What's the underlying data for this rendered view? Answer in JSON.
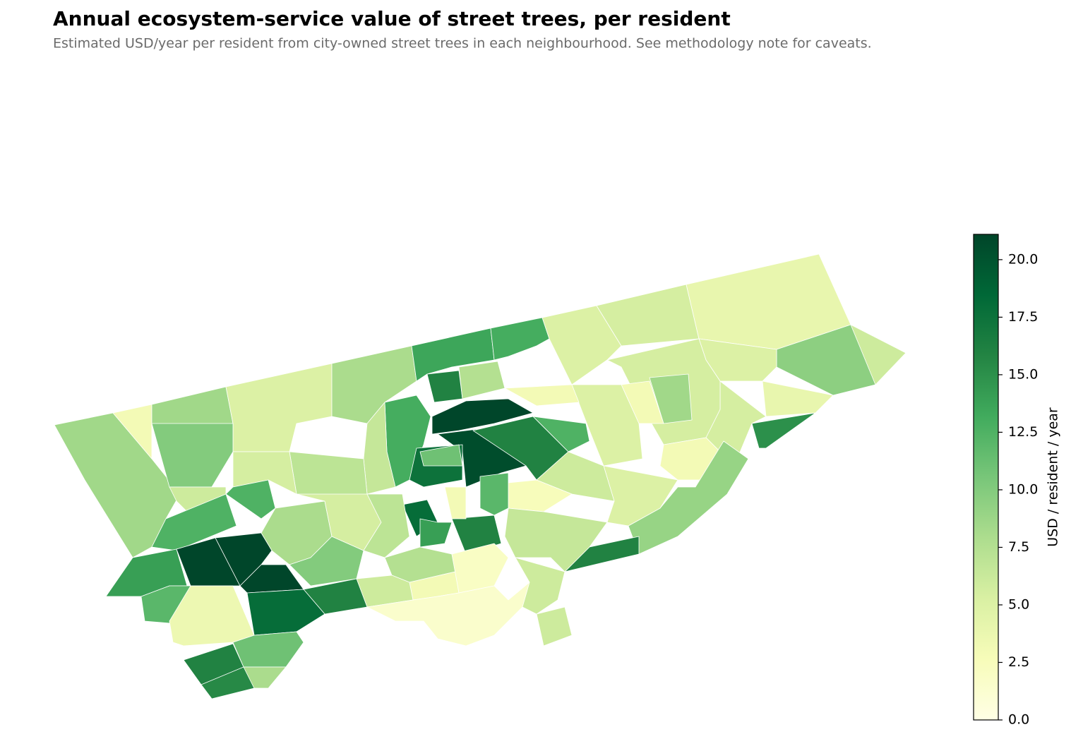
{
  "chart_data": {
    "type": "choropleth",
    "title": "Annual ecosystem-service value of street trees, per resident",
    "subtitle": "Estimated USD/year per resident from city-owned street trees in each neighbourhood. See methodology note for caveats.",
    "cmap_colors": [
      "#ffffe5",
      "#f7fcb9",
      "#d9f0a3",
      "#addd8e",
      "#78c679",
      "#41ab5d",
      "#238443",
      "#006837",
      "#004529"
    ],
    "values": [
      8.5,
      3,
      8.5,
      5,
      8,
      13.5,
      13,
      5,
      5.5,
      4,
      6,
      9.5,
      5,
      4,
      15,
      5.5,
      5.5,
      8.5,
      3,
      5,
      3,
      9,
      16,
      5,
      16,
      7.5,
      3,
      21,
      20.5,
      16,
      12.5,
      6,
      2.5,
      12,
      16,
      6.5,
      6,
      13,
      17.5,
      11,
      3,
      18,
      14,
      6.5,
      7,
      5.5,
      12.5,
      10,
      6,
      12.5,
      14,
      21,
      21,
      21,
      8,
      10,
      5.5,
      7,
      7.5,
      3,
      2,
      6,
      16,
      18,
      12,
      3.5,
      11,
      8,
      16,
      15.5,
      1.5,
      6
    ],
    "colorbar": {
      "label": "USD / resident / year",
      "lim": [
        0,
        21.1
      ],
      "ticks": [
        {
          "value": 0,
          "label": "0.0"
        },
        2.5,
        {
          "value": 5,
          "label": "5.0"
        },
        7.5,
        {
          "value": 10,
          "label": "10.0"
        },
        12.5,
        {
          "value": 15,
          "label": "15.0"
        },
        17.5,
        {
          "value": 20,
          "label": "20.0"
        }
      ]
    }
  }
}
